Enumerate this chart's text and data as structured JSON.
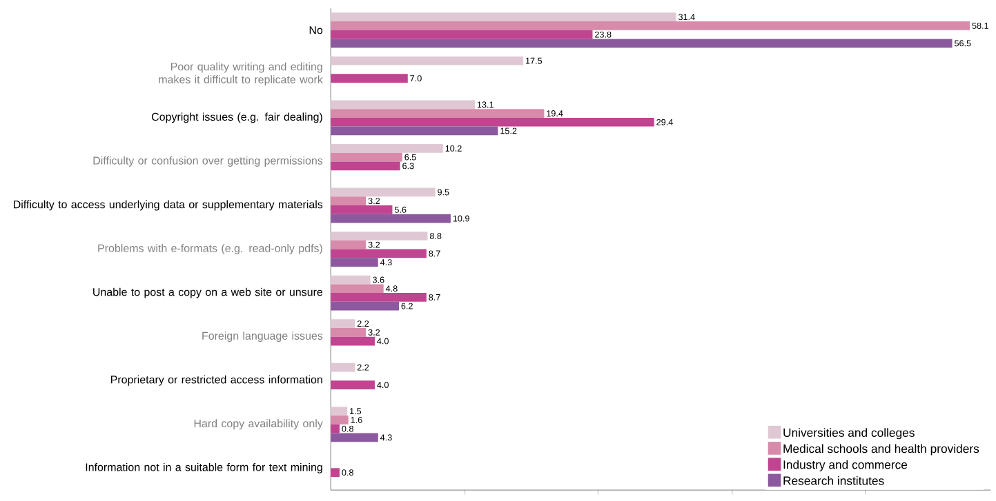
{
  "chart_data": {
    "type": "bar",
    "orientation": "horizontal",
    "categories": [
      "No",
      "Poor quality writing and editing makes it difficult to replicate work",
      "Copyright issues (e.g. fair dealing)",
      "Difficulty or confusion over getting permissions",
      "Difficulty to access underlying data or supplementary materials",
      "Problems with e-formats (e.g. read-only pdfs)",
      "Unable to post a copy on a web site or unsure",
      "Foreign language issues",
      "Proprietary or restricted access information",
      "Hard copy availability only",
      "Information not in a suitable form for text mining"
    ],
    "series": [
      {
        "name": "Universities and colleges",
        "color": "#dfc8d4",
        "values": [
          31.4,
          17.5,
          13.1,
          10.2,
          9.5,
          8.8,
          3.6,
          2.2,
          2.2,
          1.5,
          null
        ],
        "value_labels": [
          "31.4",
          "17.5",
          "13.1",
          "10.2",
          "9.5",
          "8.8",
          "3.6",
          "2.2",
          "2.2",
          "1.5",
          null
        ]
      },
      {
        "name": "Medical schools and health providers",
        "color": "#d88aaa",
        "values": [
          58.1,
          null,
          19.4,
          6.5,
          3.2,
          3.2,
          4.8,
          3.2,
          null,
          1.6,
          null
        ],
        "value_labels": [
          "58.1",
          null,
          "19.4",
          "6.5",
          "3.2",
          "3.2",
          "4.8",
          "3.2",
          null,
          "1.6",
          null
        ]
      },
      {
        "name": "Industry and commerce",
        "color": "#c0448f",
        "values": [
          23.8,
          7.0,
          29.4,
          6.3,
          5.6,
          8.7,
          8.7,
          4.0,
          4.0,
          0.8,
          0.8
        ],
        "value_labels": [
          "23.8",
          "7.0",
          "29.4",
          "6.3",
          "5.6",
          "8.7",
          "8.7",
          "4.0",
          "4.0",
          "0.8",
          "0.8"
        ]
      },
      {
        "name": "Research institutes",
        "color": "#8b5a9e",
        "values": [
          56.5,
          null,
          15.2,
          null,
          10.9,
          4.3,
          6.2,
          null,
          null,
          4.3,
          null
        ],
        "value_labels": [
          "56.5",
          null,
          "15.2",
          null,
          "10.9",
          "4.3",
          "6.2",
          null,
          null,
          "4.3",
          null
        ]
      }
    ],
    "xlim": [
      0,
      60
    ],
    "xticks": [
      {
        "value": 12.2,
        "label": null
      },
      {
        "value": 24.3,
        "label": null
      },
      {
        "value": 36.5,
        "label": null
      },
      {
        "value": 48.6,
        "label": null
      }
    ],
    "tick_labels": "y",
    "grid": false,
    "legend": "bottom right"
  }
}
